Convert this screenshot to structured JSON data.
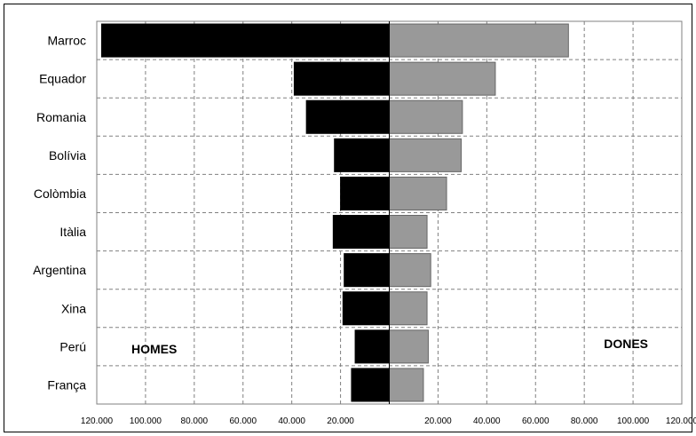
{
  "chart_data": {
    "type": "bar",
    "orientation": "horizontal",
    "layout": "population-pyramid",
    "categories": [
      "Marroc",
      "Equador",
      "Romania",
      "Bolívia",
      "Colòmbia",
      "Itàlia",
      "Argentina",
      "Xina",
      "Perú",
      "França"
    ],
    "series": [
      {
        "name": "HOMES",
        "side": "left",
        "color": "#000000",
        "values": [
          118000,
          39000,
          34000,
          22500,
          20000,
          23000,
          18500,
          19000,
          14000,
          15500
        ]
      },
      {
        "name": "DONES",
        "side": "right",
        "color": "#999999",
        "values": [
          73500,
          43500,
          30000,
          29500,
          23500,
          15500,
          17000,
          15500,
          16000,
          14000
        ]
      }
    ],
    "xlim": [
      -120000,
      120000
    ],
    "xticks": [
      -120000,
      -100000,
      -80000,
      -60000,
      -40000,
      -20000,
      0,
      20000,
      40000,
      60000,
      80000,
      100000,
      120000
    ],
    "xtick_labels": [
      "120.000",
      "100.000",
      "80.000",
      "60.000",
      "40.000",
      "20.000",
      "",
      "20.000",
      "40.000",
      "60.000",
      "80.000",
      "100.000",
      "120.000"
    ],
    "grid": true,
    "grid_style": "dashed",
    "title": "",
    "xlabel": "",
    "ylabel": ""
  }
}
